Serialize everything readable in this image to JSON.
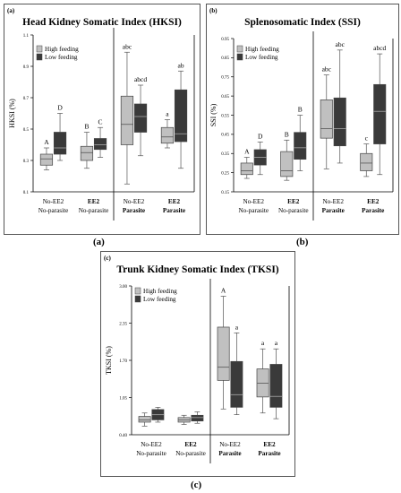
{
  "colors": {
    "light": "#c0c0c0",
    "dark": "#3a3a3a",
    "box_stroke": "#444444"
  },
  "captions": [
    "(a)",
    "(b)",
    "(c)"
  ],
  "chart_data": [
    {
      "type": "boxplot",
      "panel_label": "(a)",
      "title": "Head Kidney Somatic Index (HKSI)",
      "ylabel": "HKSI (%)",
      "ylim": [
        0.1,
        1.1
      ],
      "yticks": [
        0.1,
        0.3,
        0.5,
        0.7,
        0.9,
        1.1
      ],
      "ytick_labels": [
        "0.1",
        "0.3",
        "0.5",
        "0.7",
        "0.9",
        "1.1"
      ],
      "legend": [
        "High feeding",
        "Low feeding"
      ],
      "categories": [
        {
          "line1": "No-EE2",
          "line2": "No-parasite",
          "bold1": false,
          "bold2": false
        },
        {
          "line1": "EE2",
          "line2": "No-parasite",
          "bold1": true,
          "bold2": false
        },
        {
          "line1": "No-EE2",
          "line2": "Parasite",
          "bold1": false,
          "bold2": true
        },
        {
          "line1": "EE2",
          "line2": "Parasite",
          "bold1": true,
          "bold2": true
        }
      ],
      "series": [
        {
          "name": "High feeding",
          "boxes": [
            {
              "min": 0.24,
              "q1": 0.27,
              "median": 0.31,
              "q3": 0.34,
              "max": 0.38,
              "label": "A"
            },
            {
              "min": 0.25,
              "q1": 0.3,
              "median": 0.35,
              "q3": 0.39,
              "max": 0.48,
              "label": "B"
            },
            {
              "min": 0.15,
              "q1": 0.4,
              "median": 0.53,
              "q3": 0.71,
              "max": 0.99,
              "label": "abc"
            },
            {
              "min": 0.38,
              "q1": 0.41,
              "median": 0.45,
              "q3": 0.51,
              "max": 0.56,
              "label": "a"
            }
          ]
        },
        {
          "name": "Low feeding",
          "boxes": [
            {
              "min": 0.3,
              "q1": 0.34,
              "median": 0.38,
              "q3": 0.48,
              "max": 0.6,
              "label": "D"
            },
            {
              "min": 0.32,
              "q1": 0.37,
              "median": 0.4,
              "q3": 0.44,
              "max": 0.51,
              "label": "C"
            },
            {
              "min": 0.33,
              "q1": 0.48,
              "median": 0.58,
              "q3": 0.66,
              "max": 0.78,
              "label": "abcd"
            },
            {
              "min": 0.25,
              "q1": 0.42,
              "median": 0.47,
              "q3": 0.75,
              "max": 0.87,
              "label": "ab"
            }
          ]
        }
      ]
    },
    {
      "type": "boxplot",
      "panel_label": "(b)",
      "title": "Splenosomatic Index (SSI)",
      "ylabel": "SSI (%)",
      "ylim": [
        0.15,
        0.95
      ],
      "yticks": [
        0.15,
        0.25,
        0.35,
        0.45,
        0.55,
        0.65,
        0.75,
        0.85,
        0.95
      ],
      "ytick_labels": [
        "0.15",
        "0.25",
        "0.35",
        "0.45",
        "0.55",
        "0.65",
        "0.75",
        "0.85",
        "0.95"
      ],
      "legend": [
        "High feeding",
        "Low feeding"
      ],
      "categories": [
        {
          "line1": "No-EE2",
          "line2": "No-parasite",
          "bold1": false,
          "bold2": false
        },
        {
          "line1": "EE2",
          "line2": "No-parasite",
          "bold1": true,
          "bold2": false
        },
        {
          "line1": "No-EE2",
          "line2": "Parasite",
          "bold1": false,
          "bold2": true
        },
        {
          "line1": "EE2",
          "line2": "Parasite",
          "bold1": true,
          "bold2": true
        }
      ],
      "series": [
        {
          "name": "High feeding",
          "boxes": [
            {
              "min": 0.22,
              "q1": 0.24,
              "median": 0.26,
              "q3": 0.3,
              "max": 0.33,
              "label": "A"
            },
            {
              "min": 0.21,
              "q1": 0.23,
              "median": 0.26,
              "q3": 0.36,
              "max": 0.42,
              "label": "B"
            },
            {
              "min": 0.27,
              "q1": 0.43,
              "median": 0.48,
              "q3": 0.63,
              "max": 0.76,
              "label": "abc"
            },
            {
              "min": 0.23,
              "q1": 0.26,
              "median": 0.3,
              "q3": 0.35,
              "max": 0.4,
              "label": "c"
            }
          ]
        },
        {
          "name": "Low feeding",
          "boxes": [
            {
              "min": 0.24,
              "q1": 0.29,
              "median": 0.33,
              "q3": 0.37,
              "max": 0.41,
              "label": "D"
            },
            {
              "min": 0.26,
              "q1": 0.32,
              "median": 0.38,
              "q3": 0.46,
              "max": 0.55,
              "label": "B"
            },
            {
              "min": 0.3,
              "q1": 0.39,
              "median": 0.48,
              "q3": 0.64,
              "max": 0.89,
              "label": "abc"
            },
            {
              "min": 0.24,
              "q1": 0.4,
              "median": 0.57,
              "q3": 0.71,
              "max": 0.87,
              "label": "abcd"
            }
          ]
        }
      ]
    },
    {
      "type": "boxplot",
      "panel_label": "(c)",
      "title": "Trunk Kidney Somatic Index (TKSI)",
      "ylabel": "TKSI (%)",
      "ylim": [
        0.4,
        3.0
      ],
      "yticks": [
        0.4,
        1.05,
        1.7,
        2.35,
        3.0
      ],
      "ytick_labels": [
        "0.40",
        "1.05",
        "1.70",
        "2.35",
        "3.00"
      ],
      "legend": [
        "High feeding",
        "Low feeding"
      ],
      "categories": [
        {
          "line1": "No-EE2",
          "line2": "No-parasite",
          "bold1": false,
          "bold2": false
        },
        {
          "line1": "EE2",
          "line2": "No-parasite",
          "bold1": true,
          "bold2": false
        },
        {
          "line1": "No-EE2",
          "line2": "Parasite",
          "bold1": false,
          "bold2": true
        },
        {
          "line1": "EE2",
          "line2": "Parasite",
          "bold1": true,
          "bold2": true
        }
      ],
      "series": [
        {
          "name": "High feeding",
          "boxes": [
            {
              "min": 0.55,
              "q1": 0.62,
              "median": 0.66,
              "q3": 0.72,
              "max": 0.78,
              "label": ""
            },
            {
              "min": 0.58,
              "q1": 0.62,
              "median": 0.66,
              "q3": 0.7,
              "max": 0.74,
              "label": ""
            },
            {
              "min": 0.85,
              "q1": 1.35,
              "median": 1.58,
              "q3": 2.28,
              "max": 2.82,
              "label": "A"
            },
            {
              "min": 0.78,
              "q1": 1.06,
              "median": 1.3,
              "q3": 1.55,
              "max": 1.9,
              "label": "a"
            }
          ]
        },
        {
          "name": "Low feeding",
          "boxes": [
            {
              "min": 0.62,
              "q1": 0.66,
              "median": 0.75,
              "q3": 0.84,
              "max": 0.88,
              "label": ""
            },
            {
              "min": 0.6,
              "q1": 0.64,
              "median": 0.7,
              "q3": 0.74,
              "max": 0.8,
              "label": ""
            },
            {
              "min": 0.75,
              "q1": 0.88,
              "median": 1.1,
              "q3": 1.68,
              "max": 2.18,
              "label": "a"
            },
            {
              "min": 0.68,
              "q1": 0.88,
              "median": 1.07,
              "q3": 1.63,
              "max": 1.9,
              "label": "a"
            }
          ]
        }
      ]
    }
  ]
}
